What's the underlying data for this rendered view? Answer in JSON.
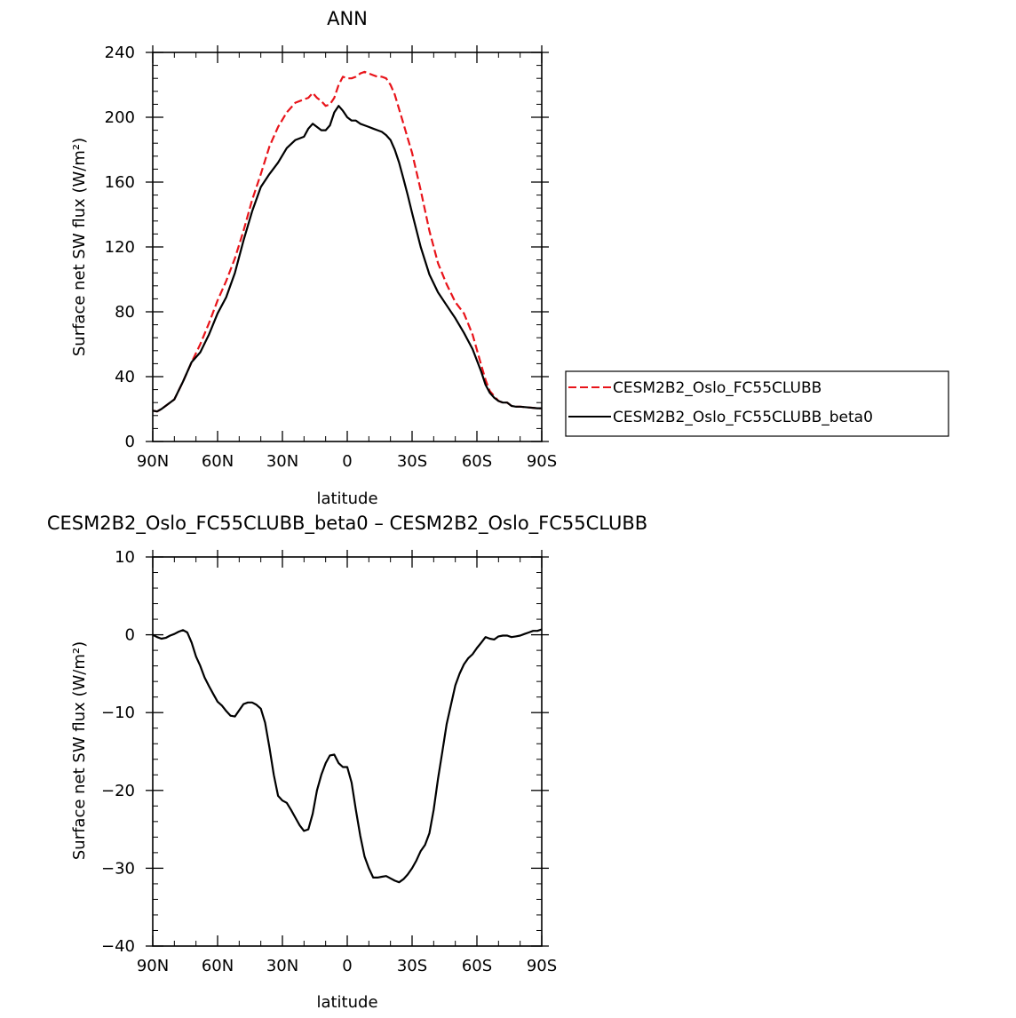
{
  "chart_data": [
    {
      "type": "line",
      "title": "ANN",
      "xlabel": "latitude",
      "ylabel": "Surface net SW flux (W/m²)",
      "xlim": [
        -90,
        90
      ],
      "ylim": [
        0,
        240
      ],
      "x_ticks": [
        -90,
        -60,
        -30,
        0,
        30,
        60,
        90
      ],
      "x_tick_labels": [
        "90N",
        "60N",
        "30N",
        "0",
        "30S",
        "60S",
        "90S"
      ],
      "y_ticks": [
        0,
        40,
        80,
        120,
        160,
        200,
        240
      ],
      "y_tick_labels": [
        "0",
        "40",
        "80",
        "120",
        "160",
        "200",
        "240"
      ],
      "legend": "right",
      "series": [
        {
          "name": "CESM2B2_Oslo_FC55CLUBB",
          "color": "#e8141a",
          "dash": "dashed",
          "x": [
            -90,
            -88,
            -86,
            -84,
            -80,
            -76,
            -72,
            -68,
            -64,
            -60,
            -56,
            -52,
            -48,
            -44,
            -40,
            -36,
            -32,
            -28,
            -24,
            -20,
            -18,
            -16,
            -14,
            -12,
            -10,
            -8,
            -6,
            -4,
            -2,
            0,
            2,
            4,
            6,
            8,
            10,
            12,
            14,
            16,
            18,
            20,
            22,
            24,
            26,
            28,
            30,
            34,
            38,
            42,
            46,
            50,
            54,
            58,
            62,
            64,
            66,
            68,
            70,
            72,
            74,
            76,
            78,
            80,
            84,
            88,
            90
          ],
          "y": [
            19,
            18.5,
            20,
            22,
            26,
            37,
            49,
            60,
            73,
            87,
            99,
            113,
            130,
            149,
            165,
            182,
            194,
            203,
            209,
            211,
            212,
            215,
            212,
            210,
            207,
            208,
            212,
            220,
            225,
            224,
            224,
            225,
            227,
            228,
            227,
            226,
            225,
            225,
            224,
            220,
            214,
            205,
            196,
            187,
            178,
            155,
            130,
            110,
            97,
            86,
            79,
            66,
            47,
            38,
            31,
            28,
            25,
            24,
            24,
            22,
            21.5,
            21.5,
            21,
            20.5,
            20.5
          ]
        },
        {
          "name": "CESM2B2_Oslo_FC55CLUBB_beta0",
          "color": "#000000",
          "dash": "solid",
          "x": [
            -90,
            -88,
            -86,
            -84,
            -80,
            -76,
            -72,
            -68,
            -64,
            -60,
            -56,
            -52,
            -48,
            -44,
            -40,
            -36,
            -32,
            -28,
            -24,
            -20,
            -18,
            -16,
            -14,
            -12,
            -10,
            -8,
            -6,
            -4,
            -2,
            0,
            2,
            4,
            6,
            8,
            10,
            12,
            14,
            16,
            18,
            20,
            22,
            24,
            26,
            28,
            30,
            34,
            38,
            42,
            46,
            50,
            54,
            58,
            62,
            64,
            66,
            68,
            70,
            72,
            74,
            76,
            78,
            80,
            84,
            88,
            90
          ],
          "y": [
            19,
            18.5,
            20,
            22,
            26,
            37,
            49,
            55,
            66,
            79,
            89,
            104,
            124,
            142,
            157,
            165,
            172,
            181,
            186,
            188,
            193,
            196,
            194,
            192,
            192,
            195,
            203,
            207,
            204,
            200,
            198,
            198,
            196,
            195,
            194,
            193,
            192,
            191,
            189,
            186,
            180,
            172,
            162,
            152,
            141,
            120,
            103,
            92,
            84,
            76,
            67,
            57,
            43,
            35,
            30,
            27,
            25,
            24,
            24,
            22,
            21.5,
            21.5,
            21,
            20.5,
            20.5
          ]
        }
      ]
    },
    {
      "type": "line",
      "title": "CESM2B2_Oslo_FC55CLUBB_beta0 – CESM2B2_Oslo_FC55CLUBB",
      "xlabel": "latitude",
      "ylabel": "Surface net SW flux (W/m²)",
      "xlim": [
        -90,
        90
      ],
      "ylim": [
        -40,
        10
      ],
      "x_ticks": [
        -90,
        -60,
        -30,
        0,
        30,
        60,
        90
      ],
      "x_tick_labels": [
        "90N",
        "60N",
        "30N",
        "0",
        "30S",
        "60S",
        "90S"
      ],
      "y_ticks": [
        -40,
        -30,
        -20,
        -10,
        0,
        10
      ],
      "y_tick_labels": [
        "−40",
        "−30",
        "−20",
        "−10",
        "0",
        "10"
      ],
      "series": [
        {
          "color": "#000000",
          "dash": "solid",
          "x": [
            -90,
            -88,
            -86,
            -84,
            -82,
            -80,
            -78,
            -76,
            -74,
            -72,
            -70,
            -68,
            -66,
            -64,
            -62,
            -60,
            -58,
            -56,
            -54,
            -52,
            -50,
            -48,
            -46,
            -44,
            -42,
            -40,
            -38,
            -36,
            -34,
            -32,
            -30,
            -28,
            -26,
            -24,
            -22,
            -20,
            -18,
            -16,
            -14,
            -12,
            -10,
            -8,
            -6,
            -4,
            -2,
            0,
            2,
            4,
            6,
            8,
            10,
            12,
            14,
            16,
            18,
            20,
            22,
            24,
            26,
            28,
            30,
            32,
            34,
            36,
            38,
            40,
            42,
            44,
            46,
            48,
            50,
            52,
            54,
            56,
            58,
            60,
            62,
            64,
            66,
            68,
            70,
            72,
            74,
            76,
            78,
            80,
            82,
            84,
            86,
            88,
            90
          ],
          "y": [
            0,
            -0.3,
            -0.5,
            -0.4,
            -0.1,
            0.1,
            0.4,
            0.6,
            0.3,
            -1,
            -2.8,
            -4,
            -5.5,
            -6.6,
            -7.6,
            -8.6,
            -9.1,
            -9.8,
            -10.4,
            -10.5,
            -9.7,
            -8.9,
            -8.7,
            -8.7,
            -9.0,
            -9.5,
            -11.3,
            -14.5,
            -18,
            -20.7,
            -21.3,
            -21.6,
            -22.5,
            -23.5,
            -24.5,
            -25.2,
            -25.0,
            -23.0,
            -20.0,
            -18.0,
            -16.5,
            -15.5,
            -15.4,
            -16.5,
            -17.0,
            -17.0,
            -19.0,
            -22.5,
            -25.8,
            -28.5,
            -30.0,
            -31.2,
            -31.2,
            -31.1,
            -31.0,
            -31.3,
            -31.6,
            -31.8,
            -31.4,
            -30.8,
            -30.0,
            -29.0,
            -27.8,
            -27.0,
            -25.5,
            -22.5,
            -18.5,
            -15.0,
            -11.5,
            -9.0,
            -6.5,
            -5.0,
            -3.8,
            -3.0,
            -2.5,
            -1.7,
            -1.0,
            -0.3,
            -0.5,
            -0.6,
            -0.2,
            -0.1,
            -0.1,
            -0.3,
            -0.2,
            -0.1,
            0.1,
            0.3,
            0.5,
            0.5,
            0.7
          ]
        }
      ]
    }
  ]
}
